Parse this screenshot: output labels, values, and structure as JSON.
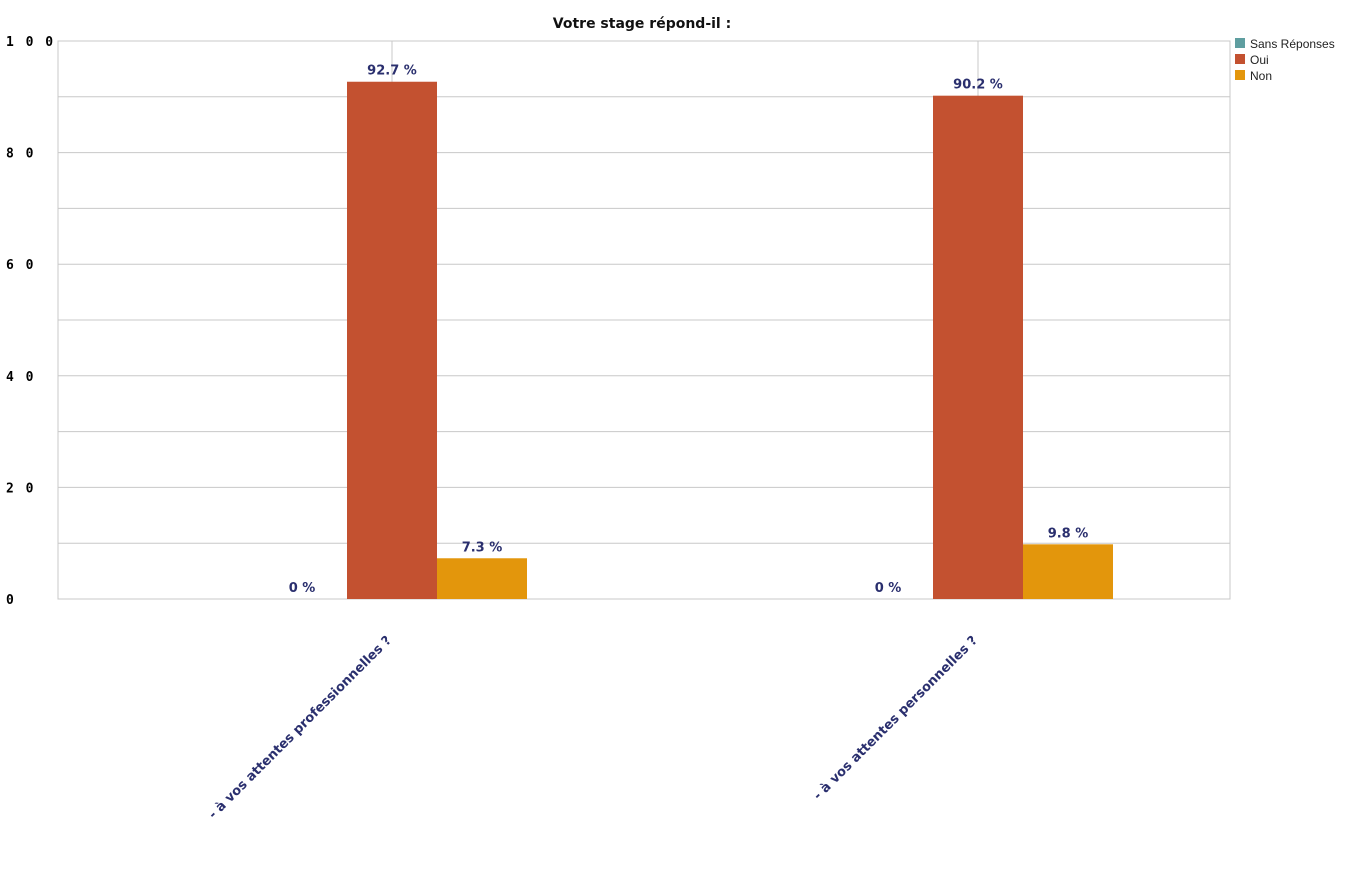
{
  "chart_data": {
    "type": "bar",
    "title": "Votre stage répond-il :",
    "categories": [
      "- à vos attentes professionnelles ?",
      "- à vos attentes personnelles ?"
    ],
    "series": [
      {
        "name": "Sans Réponses",
        "color": "#5f9ea0",
        "values": [
          0,
          0
        ],
        "labels": [
          "0 %",
          "0 %"
        ]
      },
      {
        "name": "Oui",
        "color": "#c35130",
        "values": [
          92.7,
          90.2
        ],
        "labels": [
          "92.7 %",
          "90.2 %"
        ]
      },
      {
        "name": "Non",
        "color": "#e3960c",
        "values": [
          7.3,
          9.8
        ],
        "labels": [
          "7.3 %",
          "9.8 %"
        ]
      }
    ],
    "yticks": [
      0,
      20,
      40,
      60,
      80,
      100
    ],
    "ytick_labels": [
      "0",
      "2 0",
      "4 0",
      "6 0",
      "8 0",
      "1 0 0"
    ],
    "ylim": [
      0,
      100
    ],
    "grid": true,
    "legend": "top-right"
  }
}
